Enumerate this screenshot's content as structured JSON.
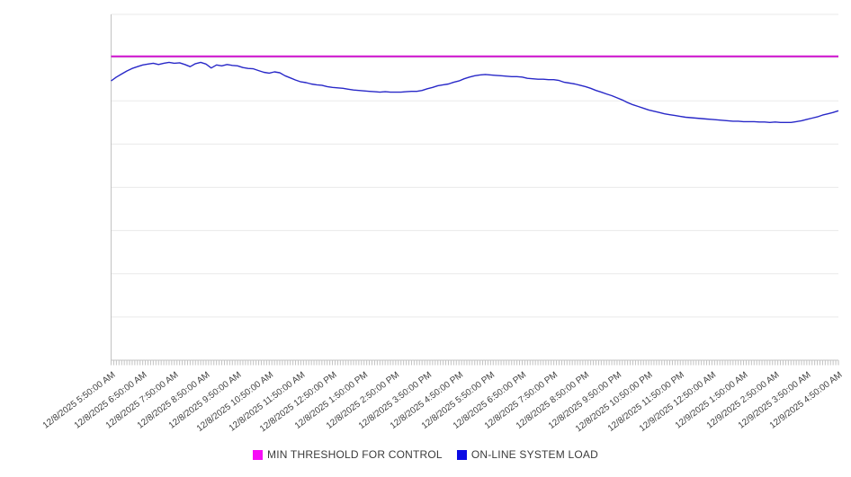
{
  "legend": {
    "items": [
      {
        "label": "MIN THRESHOLD FOR CONTROL",
        "color": "#f70ef7"
      },
      {
        "label": "ON-LINE SYSTEM LOAD",
        "color": "#0b0be4"
      }
    ]
  },
  "chart_data": {
    "type": "line",
    "title": "",
    "xlabel": "",
    "ylabel": "",
    "x_type": "datetime",
    "x_start": "12/8/2025 5:50:00 AM",
    "x_end": "12/9/2025 4:50:00 AM",
    "x_step_minutes": 10,
    "x_minor_tick_step_minutes": 5,
    "x_tick_labels": [
      "12/8/2025 5:50:00 AM",
      "12/8/2025 6:50:00 AM",
      "12/8/2025 7:50:00 AM",
      "12/8/2025 8:50:00 AM",
      "12/8/2025 9:50:00 AM",
      "12/8/2025 10:50:00 AM",
      "12/8/2025 11:50:00 AM",
      "12/8/2025 12:50:00 PM",
      "12/8/2025 1:50:00 PM",
      "12/8/2025 2:50:00 PM",
      "12/8/2025 3:50:00 PM",
      "12/8/2025 4:50:00 PM",
      "12/8/2025 5:50:00 PM",
      "12/8/2025 6:50:00 PM",
      "12/8/2025 7:50:00 PM",
      "12/8/2025 8:50:00 PM",
      "12/8/2025 9:50:00 PM",
      "12/8/2025 10:50:00 PM",
      "12/8/2025 11:50:00 PM",
      "12/9/2025 12:50:00 AM",
      "12/9/2025 1:50:00 AM",
      "12/9/2025 2:50:00 AM",
      "12/9/2025 3:50:00 AM",
      "12/9/2025 4:50:00 AM"
    ],
    "y_axis": {
      "labels_visible": false,
      "gridline_count": 8,
      "value_units": "gridline-units (0 = bottom axis, 8 = top gridline; no y labels shown)",
      "range": [
        0,
        8
      ]
    },
    "grid": true,
    "legend_position": "bottom-center",
    "series": [
      {
        "name": "MIN THRESHOLD FOR CONTROL",
        "type": "threshold",
        "color": "#cf10cf",
        "value": 7.03
      },
      {
        "name": "ON-LINE SYSTEM LOAD",
        "type": "line",
        "color": "#2828c8",
        "values": [
          6.46,
          6.55,
          6.62,
          6.69,
          6.75,
          6.79,
          6.83,
          6.85,
          6.87,
          6.84,
          6.87,
          6.89,
          6.87,
          6.88,
          6.84,
          6.79,
          6.86,
          6.89,
          6.85,
          6.76,
          6.83,
          6.81,
          6.84,
          6.82,
          6.81,
          6.77,
          6.75,
          6.74,
          6.7,
          6.66,
          6.64,
          6.67,
          6.65,
          6.58,
          6.53,
          6.48,
          6.44,
          6.42,
          6.39,
          6.37,
          6.36,
          6.33,
          6.31,
          6.3,
          6.29,
          6.27,
          6.25,
          6.24,
          6.23,
          6.22,
          6.21,
          6.2,
          6.21,
          6.2,
          6.2,
          6.2,
          6.21,
          6.22,
          6.22,
          6.24,
          6.28,
          6.31,
          6.35,
          6.37,
          6.39,
          6.43,
          6.46,
          6.51,
          6.55,
          6.58,
          6.6,
          6.61,
          6.6,
          6.59,
          6.58,
          6.57,
          6.56,
          6.56,
          6.55,
          6.52,
          6.51,
          6.5,
          6.5,
          6.49,
          6.49,
          6.47,
          6.43,
          6.41,
          6.39,
          6.36,
          6.33,
          6.29,
          6.24,
          6.2,
          6.16,
          6.12,
          6.07,
          6.02,
          5.96,
          5.91,
          5.87,
          5.83,
          5.79,
          5.76,
          5.73,
          5.7,
          5.68,
          5.66,
          5.64,
          5.62,
          5.61,
          5.6,
          5.59,
          5.58,
          5.57,
          5.56,
          5.55,
          5.54,
          5.53,
          5.53,
          5.52,
          5.52,
          5.52,
          5.51,
          5.51,
          5.5,
          5.51,
          5.5,
          5.5,
          5.5,
          5.52,
          5.54,
          5.57,
          5.6,
          5.63,
          5.67,
          5.7,
          5.73,
          5.77
        ]
      }
    ]
  }
}
